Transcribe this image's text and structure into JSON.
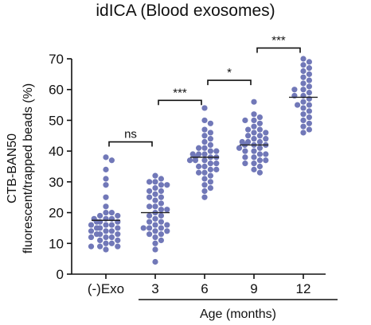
{
  "chart_data": {
    "type": "scatter",
    "title": "idICA (Blood exosomes)",
    "ylabel_line1": "CTB-BAN50",
    "ylabel_line2": "fluorescent/trapped beads (%)",
    "xlabel": "Age (months)",
    "ylim": [
      0,
      70
    ],
    "yticks": [
      0,
      10,
      20,
      30,
      40,
      50,
      60,
      70
    ],
    "categories": [
      "(-)Exo",
      "3",
      "6",
      "9",
      "12"
    ],
    "dot_color": "#7178b8",
    "groups": [
      {
        "name": "(-)Exo",
        "mean": 17.5,
        "values": [
          38,
          37,
          34,
          31,
          29,
          25,
          22,
          20,
          20,
          19,
          19,
          18,
          18,
          18,
          17,
          17,
          17,
          16,
          16,
          16,
          15,
          15,
          15,
          14,
          14,
          14,
          13,
          13,
          13,
          12,
          12,
          12,
          11,
          11,
          10,
          10,
          9,
          9,
          9,
          8
        ]
      },
      {
        "name": "3",
        "mean": 20,
        "values": [
          32,
          31,
          30,
          30,
          29,
          29,
          28,
          27,
          27,
          26,
          25,
          25,
          24,
          23,
          22,
          22,
          21,
          21,
          20,
          19,
          19,
          18,
          17,
          17,
          16,
          16,
          15,
          15,
          15,
          14,
          14,
          13,
          13,
          12,
          11,
          10,
          8,
          4
        ]
      },
      {
        "name": "6",
        "mean": 38,
        "values": [
          54,
          50,
          49,
          47,
          46,
          45,
          44,
          43,
          42,
          41,
          41,
          40,
          40,
          39,
          39,
          39,
          38,
          38,
          38,
          37,
          37,
          37,
          36,
          36,
          35,
          35,
          34,
          34,
          33,
          33,
          32,
          31,
          30,
          29,
          28,
          27,
          25
        ]
      },
      {
        "name": "9",
        "mean": 42,
        "values": [
          56,
          52,
          51,
          50,
          50,
          49,
          48,
          47,
          47,
          46,
          46,
          45,
          45,
          44,
          44,
          43,
          43,
          43,
          42,
          42,
          42,
          41,
          41,
          40,
          40,
          39,
          39,
          38,
          38,
          37,
          37,
          36,
          36,
          35,
          34,
          33
        ]
      },
      {
        "name": "12",
        "mean": 57.5,
        "values": [
          70,
          69,
          68,
          67,
          66,
          65,
          64,
          63,
          62,
          61,
          60,
          60,
          59,
          58,
          58,
          57,
          56,
          55,
          55,
          54,
          53,
          52,
          51,
          50,
          49,
          48,
          47,
          46
        ]
      }
    ],
    "comparisons": [
      {
        "from": "(-)Exo",
        "to": "3",
        "label": "ns",
        "y": 43
      },
      {
        "from": "3",
        "to": "6",
        "label": "***",
        "y": 56.5
      },
      {
        "from": "6",
        "to": "9",
        "label": "*",
        "y": 63
      },
      {
        "from": "9",
        "to": "12",
        "label": "***",
        "y": 73.5
      }
    ]
  }
}
